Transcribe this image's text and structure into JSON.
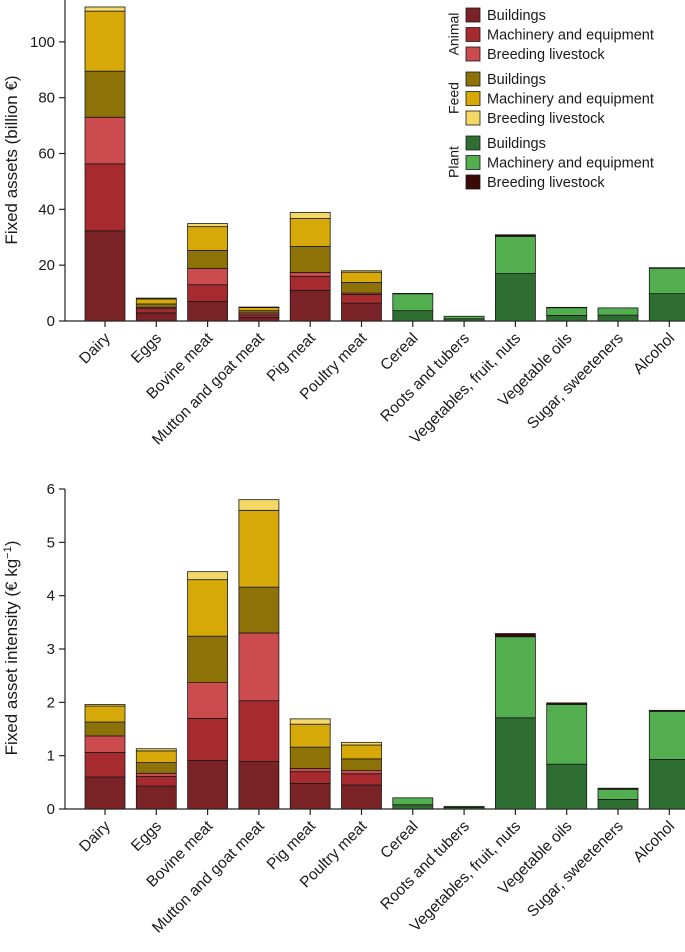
{
  "legend": {
    "groups": [
      {
        "name": "Animal",
        "items": [
          {
            "label": "Buildings",
            "color": "#7a2326"
          },
          {
            "label": "Machinery and equipment",
            "color": "#a72a2e"
          },
          {
            "label": "Breeding livestock",
            "color": "#cc4b4f"
          }
        ]
      },
      {
        "name": "Feed",
        "items": [
          {
            "label": "Buildings",
            "color": "#8d7307"
          },
          {
            "label": "Machinery and equipment",
            "color": "#d6a808"
          },
          {
            "label": "Breeding livestock",
            "color": "#f3d866"
          }
        ]
      },
      {
        "name": "Plant",
        "items": [
          {
            "label": "Buildings",
            "color": "#2f6e32"
          },
          {
            "label": "Machinery and equipment",
            "color": "#52ae4f"
          },
          {
            "label": "Breeding livestock",
            "color": "#3a0a06"
          }
        ]
      }
    ]
  },
  "chart_data": [
    {
      "type": "bar",
      "stacked": true,
      "ylabel": "Fixed assets (billion €)",
      "ylim": [
        0,
        115
      ],
      "yticks": [
        0,
        20,
        40,
        60,
        80,
        100
      ],
      "categories": [
        "Dairy",
        "Eggs",
        "Bovine meat",
        "Mutton and goat meat",
        "Pig meat",
        "Poultry meat",
        "Cereal",
        "Roots and tubers",
        "Vegetables, fruit, nuts",
        "Vegetable oils",
        "Sugar, sweeteners",
        "Alcohol"
      ],
      "series": [
        {
          "name": "Animal – Buildings",
          "values": [
            32.3,
            2.9,
            7,
            1.3,
            11,
            6.4,
            0,
            0,
            0,
            0,
            0,
            0
          ]
        },
        {
          "name": "Animal – Machinery and equipment",
          "values": [
            24,
            1.5,
            6,
            0.9,
            5,
            3.1,
            0,
            0,
            0,
            0,
            0,
            0
          ]
        },
        {
          "name": "Animal – Breeding livestock",
          "values": [
            16.7,
            0.5,
            5.8,
            0.7,
            1.4,
            0.5,
            0,
            0,
            0,
            0,
            0,
            0
          ]
        },
        {
          "name": "Feed – Buildings",
          "values": [
            16.5,
            1.2,
            6.5,
            0.8,
            9.3,
            3.8,
            0,
            0,
            0,
            0,
            0,
            0
          ]
        },
        {
          "name": "Feed – Machinery and equipment",
          "values": [
            21.5,
            1.8,
            8.5,
            1.1,
            10,
            3.7,
            0,
            0,
            0,
            0,
            0,
            0
          ]
        },
        {
          "name": "Feed – Breeding livestock",
          "values": [
            1.5,
            0.3,
            1.1,
            0.2,
            2.2,
            0.5,
            0,
            0,
            0,
            0,
            0,
            0
          ]
        },
        {
          "name": "Plant – Buildings",
          "values": [
            0,
            0,
            0,
            0,
            0,
            0,
            3.7,
            0.8,
            17,
            2,
            2.1,
            9.8
          ]
        },
        {
          "name": "Plant – Machinery and equipment",
          "values": [
            0,
            0,
            0,
            0,
            0,
            0,
            6.1,
            0.9,
            13.3,
            2.8,
            2.6,
            9.1
          ]
        },
        {
          "name": "Plant – Breeding livestock",
          "values": [
            0,
            0,
            0,
            0,
            0,
            0,
            0.1,
            0,
            0.6,
            0.1,
            0,
            0.2
          ]
        }
      ]
    },
    {
      "type": "bar",
      "stacked": true,
      "ylabel": "Fixed asset intensity (€ kg",
      "ylabel_sup": "−1",
      "ylabel_end": ")",
      "ylim": [
        0,
        6
      ],
      "yticks": [
        0,
        1,
        2,
        3,
        4,
        5,
        6
      ],
      "categories": [
        "Dairy",
        "Eggs",
        "Bovine meat",
        "Mutton and goat meat",
        "Pig meat",
        "Poultry meat",
        "Cereal",
        "Roots and tubers",
        "Vegetables, fruit, nuts",
        "Vegetable oils",
        "Sugar, sweeteners",
        "Alcohol"
      ],
      "series": [
        {
          "name": "Animal – Buildings",
          "values": [
            0.6,
            0.43,
            0.91,
            0.89,
            0.48,
            0.45,
            0,
            0,
            0,
            0,
            0,
            0
          ]
        },
        {
          "name": "Animal – Machinery and equipment",
          "values": [
            0.46,
            0.18,
            0.79,
            1.14,
            0.22,
            0.21,
            0,
            0,
            0,
            0,
            0,
            0
          ]
        },
        {
          "name": "Animal – Breeding livestock",
          "values": [
            0.31,
            0.06,
            0.67,
            1.27,
            0.06,
            0.06,
            0,
            0,
            0,
            0,
            0,
            0
          ]
        },
        {
          "name": "Feed – Buildings",
          "values": [
            0.26,
            0.2,
            0.87,
            0.86,
            0.4,
            0.22,
            0,
            0,
            0,
            0,
            0,
            0
          ]
        },
        {
          "name": "Feed – Machinery and equipment",
          "values": [
            0.3,
            0.22,
            1.06,
            1.44,
            0.43,
            0.26,
            0,
            0,
            0,
            0,
            0,
            0
          ]
        },
        {
          "name": "Feed – Breeding livestock",
          "values": [
            0.03,
            0.04,
            0.15,
            0.2,
            0.1,
            0.05,
            0,
            0,
            0,
            0,
            0,
            0
          ]
        },
        {
          "name": "Plant – Buildings",
          "values": [
            0,
            0,
            0,
            0,
            0,
            0,
            0.08,
            0.03,
            1.71,
            0.84,
            0.18,
            0.93
          ]
        },
        {
          "name": "Plant – Machinery and equipment",
          "values": [
            0,
            0,
            0,
            0,
            0,
            0,
            0.13,
            0.02,
            1.52,
            1.12,
            0.19,
            0.9
          ]
        },
        {
          "name": "Plant – Breeding livestock",
          "values": [
            0,
            0,
            0,
            0,
            0,
            0,
            0,
            0,
            0.06,
            0.03,
            0.02,
            0.02
          ]
        }
      ]
    }
  ]
}
